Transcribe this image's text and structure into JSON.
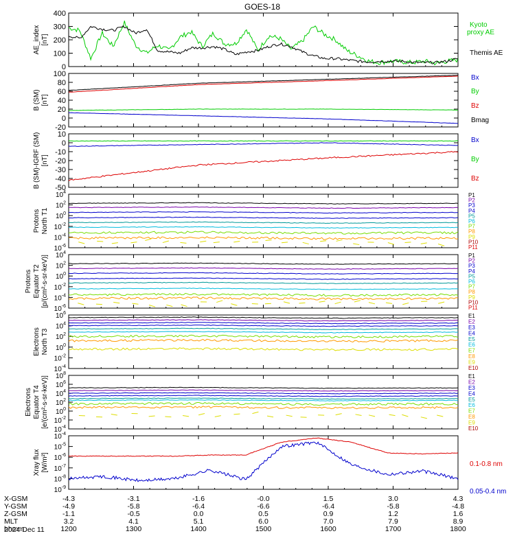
{
  "title": "GOES-18",
  "date_label": "2024 Dec 11",
  "colors": {
    "black": "#000000",
    "green": "#00cc00",
    "red": "#dd0000",
    "blue": "#0000cc",
    "cyan": "#00bbdd",
    "teal": "#009999",
    "lime": "#77dd00",
    "yellow": "#dddd00",
    "orange": "#ff9900",
    "darkred": "#aa0000",
    "purple": "#7700aa"
  },
  "chart_data": [
    {
      "type": "line",
      "panel": "ae",
      "ylabel": "AE_index [nT]",
      "ylim": [
        0,
        400
      ],
      "yticks": [
        "400",
        "300",
        "200",
        "100",
        "0"
      ],
      "series": [
        {
          "name": "Kyoto proxy AE",
          "color": "green",
          "values": [
            290,
            270,
            60,
            250,
            150,
            330,
            160,
            100,
            160,
            120,
            220,
            260,
            150,
            250,
            170,
            170,
            280,
            120,
            230,
            210,
            130,
            190,
            300,
            240,
            200,
            120,
            80,
            40,
            30,
            40,
            35,
            30,
            40,
            25,
            40,
            50
          ]
        },
        {
          "name": "Themis AE",
          "color": "black",
          "values": [
            230,
            210,
            300,
            280,
            270,
            300,
            250,
            280,
            120,
            110,
            100,
            140,
            140,
            150,
            130,
            90,
            110,
            120,
            150,
            170,
            150,
            110,
            80,
            60,
            60,
            50,
            40,
            35,
            40,
            40,
            40,
            30,
            30,
            30,
            40,
            60
          ]
        }
      ]
    },
    {
      "type": "line",
      "panel": "b",
      "ylabel": "B (SM) [nT]",
      "ylim": [
        -20,
        100
      ],
      "yticks": [
        "100",
        "80",
        "60",
        "40",
        "20",
        "0",
        "-20"
      ],
      "series": [
        {
          "name": "Bx",
          "color": "blue",
          "values": [
            12,
            5,
            -2,
            -12
          ]
        },
        {
          "name": "By",
          "color": "green",
          "values": [
            17,
            20,
            20,
            18
          ]
        },
        {
          "name": "Bz",
          "color": "red",
          "values": [
            58,
            75,
            84,
            94
          ]
        },
        {
          "name": "Bmag",
          "color": "black",
          "values": [
            62,
            78,
            87,
            96
          ]
        }
      ]
    },
    {
      "type": "line",
      "panel": "bigrf",
      "ylabel": "B (SM)-IGRF (SM) [nT]",
      "ylim": [
        -50,
        10
      ],
      "yticks": [
        "10",
        "0",
        "-10",
        "-20",
        "-30",
        "-40",
        "-50"
      ],
      "series": [
        {
          "name": "Bx",
          "color": "blue",
          "values": [
            -4,
            -2,
            0,
            -3
          ]
        },
        {
          "name": "By",
          "color": "green",
          "values": [
            2,
            2,
            2,
            2
          ]
        },
        {
          "name": "Bz",
          "color": "red",
          "values": [
            -42,
            -25,
            -17,
            -10
          ]
        }
      ]
    },
    {
      "type": "line",
      "panel": "p_north",
      "ylabel": "Protons North T1",
      "labels": [
        "P1",
        "P2",
        "P3",
        "P4",
        "P5",
        "P6",
        "P7",
        "P8",
        "P9",
        "P10",
        "P11"
      ]
    },
    {
      "type": "line",
      "panel": "p_equator",
      "ylabel": "Protons Equator T2 [p/(cm²-s-sr-keV)]",
      "labels": [
        "P1",
        "P2",
        "P3",
        "P4",
        "P5",
        "P6",
        "P7",
        "P8",
        "P9",
        "P10",
        "P11"
      ]
    },
    {
      "type": "line",
      "panel": "e_north",
      "ylabel": "Electrons North T3",
      "labels": [
        "E1",
        "E2",
        "E3",
        "E4",
        "E5",
        "E6",
        "E7",
        "E8",
        "E9",
        "E10"
      ]
    },
    {
      "type": "line",
      "panel": "e_equator",
      "ylabel": "Electrons Equator T4 [e/(cm²-s-sr-keV)]",
      "labels": [
        "E1",
        "E2",
        "E3",
        "E4",
        "E5",
        "E6",
        "E7",
        "E8",
        "E9",
        "E10"
      ]
    },
    {
      "type": "line",
      "panel": "xray",
      "ylabel": "Xray flux [W/m²]",
      "ylim": [
        -9,
        -4
      ],
      "series": [
        {
          "name": "0.1-0.8 nm",
          "color": "red",
          "values": [
            -5.9,
            -5.9,
            -5.9,
            -5.9,
            -5.8,
            -5.8,
            -4.6,
            -4.2,
            -4.6,
            -5.6,
            -5.7,
            -5.6
          ]
        },
        {
          "name": "0.05-0.4 nm",
          "color": "blue",
          "values": [
            -8.0,
            -7.8,
            -8.2,
            -8.0,
            -7.2,
            -8.1,
            -5.0,
            -4.6,
            -6.7,
            -7.6,
            -7.3,
            -8.0
          ]
        }
      ]
    }
  ],
  "ephemeris": {
    "rows": [
      {
        "label": "X-GSM",
        "values": [
          "-4.3",
          "-3.1",
          "-1.6",
          "-0.0",
          "1.5",
          "3.0",
          "4.3"
        ]
      },
      {
        "label": "Y-GSM",
        "values": [
          "-4.9",
          "-5.8",
          "-6.4",
          "-6.6",
          "-6.4",
          "-5.8",
          "-4.8"
        ]
      },
      {
        "label": "Z-GSM",
        "values": [
          "-1.1",
          "-0.5",
          "0.0",
          "0.5",
          "0.9",
          "1.2",
          "1.6"
        ]
      },
      {
        "label": "MLT",
        "values": [
          "3.2",
          "4.1",
          "5.1",
          "6.0",
          "7.0",
          "7.9",
          "8.9"
        ]
      },
      {
        "label": "hhmm",
        "values": [
          "1200",
          "1300",
          "1400",
          "1500",
          "1600",
          "1700",
          "1800"
        ]
      }
    ]
  }
}
